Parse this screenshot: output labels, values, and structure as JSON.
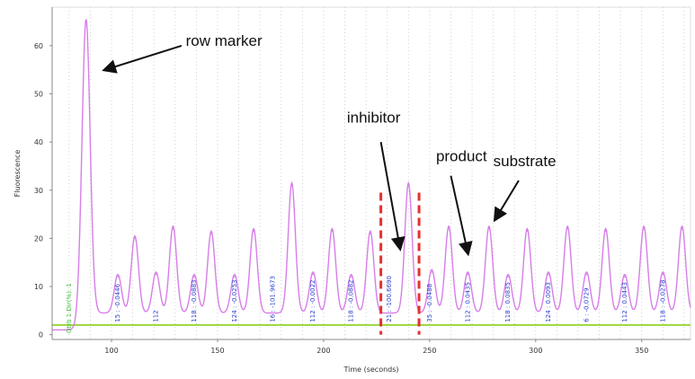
{
  "chart_data": {
    "type": "line",
    "xlabel": "Time (seconds)",
    "ylabel": "Fluorescence",
    "xlim": [
      72,
      373
    ],
    "ylim": [
      -1,
      68
    ],
    "grid": "vertical-dotted",
    "x_ticks": [
      100,
      150,
      200,
      250,
      300,
      350
    ],
    "y_ticks": [
      0,
      10,
      20,
      30,
      40,
      50,
      60
    ],
    "line_color": "#d77ee8",
    "baseline_color": "#9ad63a",
    "peak_label_color": "#2a3fd0",
    "baseline": 2,
    "series": [
      {
        "peaks": [
          {
            "x": 88,
            "y": 65
          },
          {
            "x": 103,
            "y": 12
          },
          {
            "x": 111,
            "y": 20
          },
          {
            "x": 121,
            "y": 12.5
          },
          {
            "x": 129,
            "y": 22
          },
          {
            "x": 139,
            "y": 12
          },
          {
            "x": 147,
            "y": 21
          },
          {
            "x": 158,
            "y": 12
          },
          {
            "x": 167,
            "y": 21.5
          },
          {
            "x": 185,
            "y": 31
          },
          {
            "x": 195,
            "y": 12.5
          },
          {
            "x": 204,
            "y": 21.5
          },
          {
            "x": 213,
            "y": 12
          },
          {
            "x": 222,
            "y": 21
          },
          {
            "x": 240,
            "y": 31
          },
          {
            "x": 251,
            "y": 13
          },
          {
            "x": 259,
            "y": 22
          },
          {
            "x": 268,
            "y": 12.5
          },
          {
            "x": 278,
            "y": 22
          },
          {
            "x": 287,
            "y": 12
          },
          {
            "x": 296,
            "y": 21.5
          },
          {
            "x": 306,
            "y": 12.5
          },
          {
            "x": 315,
            "y": 22
          },
          {
            "x": 324,
            "y": 12.5
          },
          {
            "x": 333,
            "y": 21.5
          },
          {
            "x": 342,
            "y": 12
          },
          {
            "x": 351,
            "y": 22
          },
          {
            "x": 360,
            "y": 12.5
          },
          {
            "x": 369,
            "y": 22
          }
        ]
      }
    ],
    "regions": [
      {
        "x": 227
      },
      {
        "x": 245
      }
    ],
    "annotations": [
      {
        "text": "row marker",
        "text_x": 135,
        "text_y": 60,
        "arrow_from": [
          133,
          60
        ],
        "arrow_to": [
          97,
          55
        ]
      },
      {
        "text": "inhibitor",
        "text_x": 211,
        "text_y": 44,
        "arrow_from": [
          227,
          40
        ],
        "arrow_to": [
          236,
          18
        ]
      },
      {
        "text": "product",
        "text_x": 253,
        "text_y": 36,
        "arrow_from": [
          260,
          33
        ],
        "arrow_to": [
          268,
          17
        ]
      },
      {
        "text": "substrate",
        "text_x": 280,
        "text_y": 35,
        "arrow_from": [
          292,
          32
        ],
        "arrow_to": [
          281,
          24
        ]
      }
    ],
    "baseline_label": "Otrb 1 Dir(%): 1",
    "peak_labels": [
      {
        "x": 103,
        "text": "15 : -0.0446"
      },
      {
        "x": 121,
        "text": "112"
      },
      {
        "x": 139,
        "text": "118 : -0.0883"
      },
      {
        "x": 158,
        "text": "124 : -0.0253"
      },
      {
        "x": 176,
        "text": "16 : -101.9673"
      },
      {
        "x": 195,
        "text": "112 : -0.0022"
      },
      {
        "x": 213,
        "text": "118 : -0.0882"
      },
      {
        "x": 231,
        "text": "21 : -100.6690"
      },
      {
        "x": 250,
        "text": "35 : -0.0488"
      },
      {
        "x": 268,
        "text": "112 : 0.0435"
      },
      {
        "x": 287,
        "text": "118 : 0.0835"
      },
      {
        "x": 306,
        "text": "124 : 0.0093"
      },
      {
        "x": 324,
        "text": "6 : -0.0729"
      },
      {
        "x": 342,
        "text": "112 : 0.0443"
      },
      {
        "x": 360,
        "text": "118 : -0.0278"
      }
    ]
  }
}
